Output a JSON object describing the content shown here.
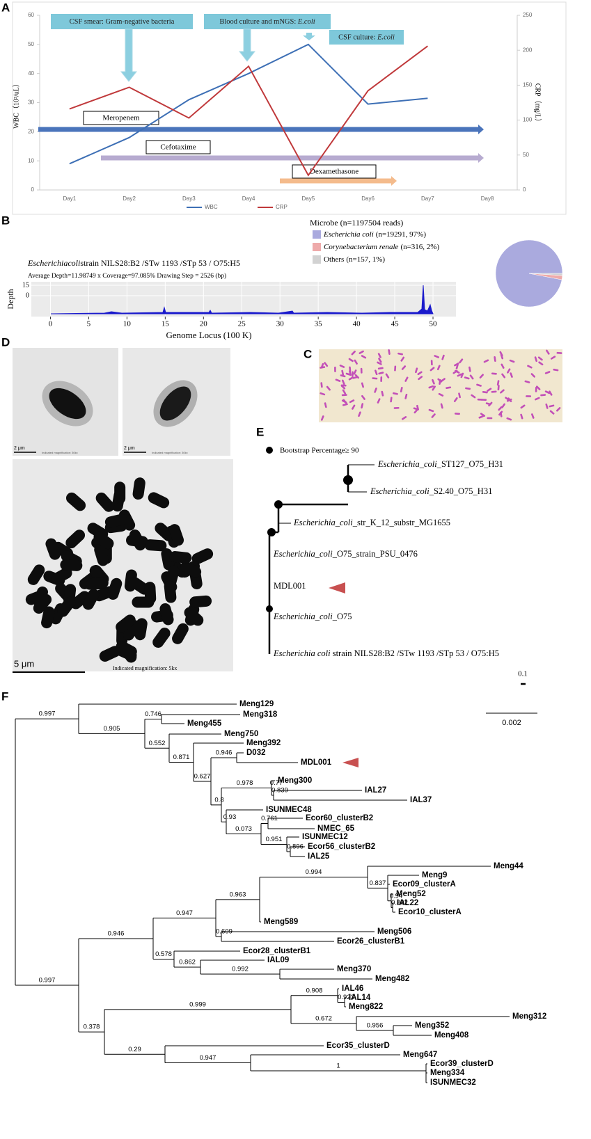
{
  "panel_labels": [
    "A",
    "B",
    "C",
    "D",
    "E",
    "F"
  ],
  "chart_data": [
    {
      "type": "line",
      "categories": [
        "Day1",
        "Day2",
        "Day3",
        "Day4",
        "Day5",
        "Day6",
        "Day7",
        "Day8"
      ],
      "series": [
        {
          "name": "WBC",
          "color": "#3d6fb5",
          "values": [
            9,
            18,
            31,
            40,
            50,
            29.5,
            31.5,
            null
          ]
        },
        {
          "name": "CRP",
          "color": "#c0393b",
          "axis": "y2",
          "values": [
            116,
            147,
            103,
            177,
            21,
            142,
            206,
            null
          ]
        }
      ],
      "ylabel": "WBC（10³/uL）",
      "y2label": "CRP（mg/L）",
      "ylim": [
        0,
        60
      ],
      "yticks": [
        0,
        10,
        20,
        30,
        40,
        50,
        60
      ],
      "y2lim": [
        0,
        250
      ],
      "y2ticks": [
        0,
        50,
        100,
        150,
        200,
        250
      ],
      "legend": "bottom",
      "annotations": [
        [
          "CSF smear: Gram-negative bacteria"
        ],
        [
          "Blood culture and mNGS: ",
          "E.coli"
        ],
        [
          "CSF culture: ",
          "E.coli"
        ]
      ],
      "treatments": [
        "Meropenem",
        "Cefotaxime",
        "Dexamethasone"
      ]
    },
    {
      "type": "pie",
      "title": "Microbe (n=1197504 reads)",
      "categories": [
        "Escherichia coli",
        "Corynebacterium renale",
        "Others"
      ],
      "values": [
        97,
        2,
        1
      ],
      "value_labels": [
        "(n=19291, 97%)",
        "(n=316, 2%)",
        "(n=157, 1%)"
      ],
      "colors": [
        "#aaaade",
        "#eeaaaa",
        "#d2d2d2"
      ]
    }
  ],
  "coverage": {
    "title": [
      "Escherichiacoli",
      "strain NILS28:B2 /STw 1193 /STp 53 / O75:H5"
    ],
    "subtitle": "Average Depth=11.98749 x  Coverage=97.085% Drawing Step = 2526 (bp)",
    "xlabel": "Genome Locus (100 K)",
    "ylabel": "Depth",
    "xlim": [
      -2.5,
      53
    ],
    "xticks": [
      0,
      5,
      10,
      15,
      20,
      25,
      30,
      35,
      40,
      45,
      50
    ],
    "ylim": [
      -30,
      20
    ],
    "yticks": [
      15,
      0
    ]
  },
  "panel_d": {
    "scale_small": "2 μm",
    "magnification_small": "Indicated magnification: 30kx",
    "scale_large": "5 μm",
    "magnification_large": "Indicated magnification: 5kx"
  },
  "panel_e": {
    "legend": "Bootstrap Percentage≥ 90",
    "leaves": [
      [
        "Escherichia_coli",
        "_ST127_O75_H31"
      ],
      [
        "Escherichia_coli",
        "_S2.40_O75_H31"
      ],
      [
        "Escherichia_coli",
        "_str_K_12_substr_MG1655"
      ],
      [
        "Escherichia_coli",
        "_O75_strain_PSU_0476"
      ],
      [
        "MDL001"
      ],
      [
        "Escherichia_coli",
        "_O75"
      ],
      [
        "Escherichia coli",
        " strain NILS28:B2 /STw 1193 /STp 53 / O75:H5"
      ]
    ],
    "scale": "0.1"
  },
  "panel_f": {
    "leaves": [
      "Meng129",
      "Meng318",
      "Meng455",
      "Meng750",
      "Meng392",
      "D032",
      "MDL001",
      "Meng300",
      "IAL27",
      "IAL37",
      "ISUNMEC48",
      "Ecor60_clusterB2",
      "NMEC_65",
      "ISUNMEC12",
      "Ecor56_clusterB2",
      "IAL25",
      "Meng44",
      "Meng9",
      "Ecor09_clusterA",
      "Meng52",
      "IAL22",
      "Ecor10_clusterA",
      "Meng589",
      "Meng506",
      "Ecor26_clusterB1",
      "Ecor28_clusterB1",
      "IAL09",
      "Meng370",
      "Meng482",
      "IAL46",
      "IAL14",
      "Meng822",
      "Meng312",
      "Meng352",
      "Meng408",
      "Ecor35_clusterD",
      "Meng647",
      "Ecor39_clusterD",
      "Meng334",
      "ISUNMEC32"
    ],
    "support": [
      0.997,
      0.905,
      0.746,
      0.552,
      0.871,
      0.627,
      0.946,
      0.8,
      0.978,
      0.77,
      0.839,
      0.93,
      0.073,
      0.761,
      0.951,
      0.896,
      0.997,
      0.946,
      0.947,
      0.963,
      0.994,
      0.837,
      0.94,
      0.892,
      0.609,
      0.578,
      0.862,
      0.992,
      0.378,
      0.999,
      0.908,
      0.923,
      0.672,
      0.956,
      0.29,
      0.947,
      1
    ],
    "scale": "0.002"
  }
}
